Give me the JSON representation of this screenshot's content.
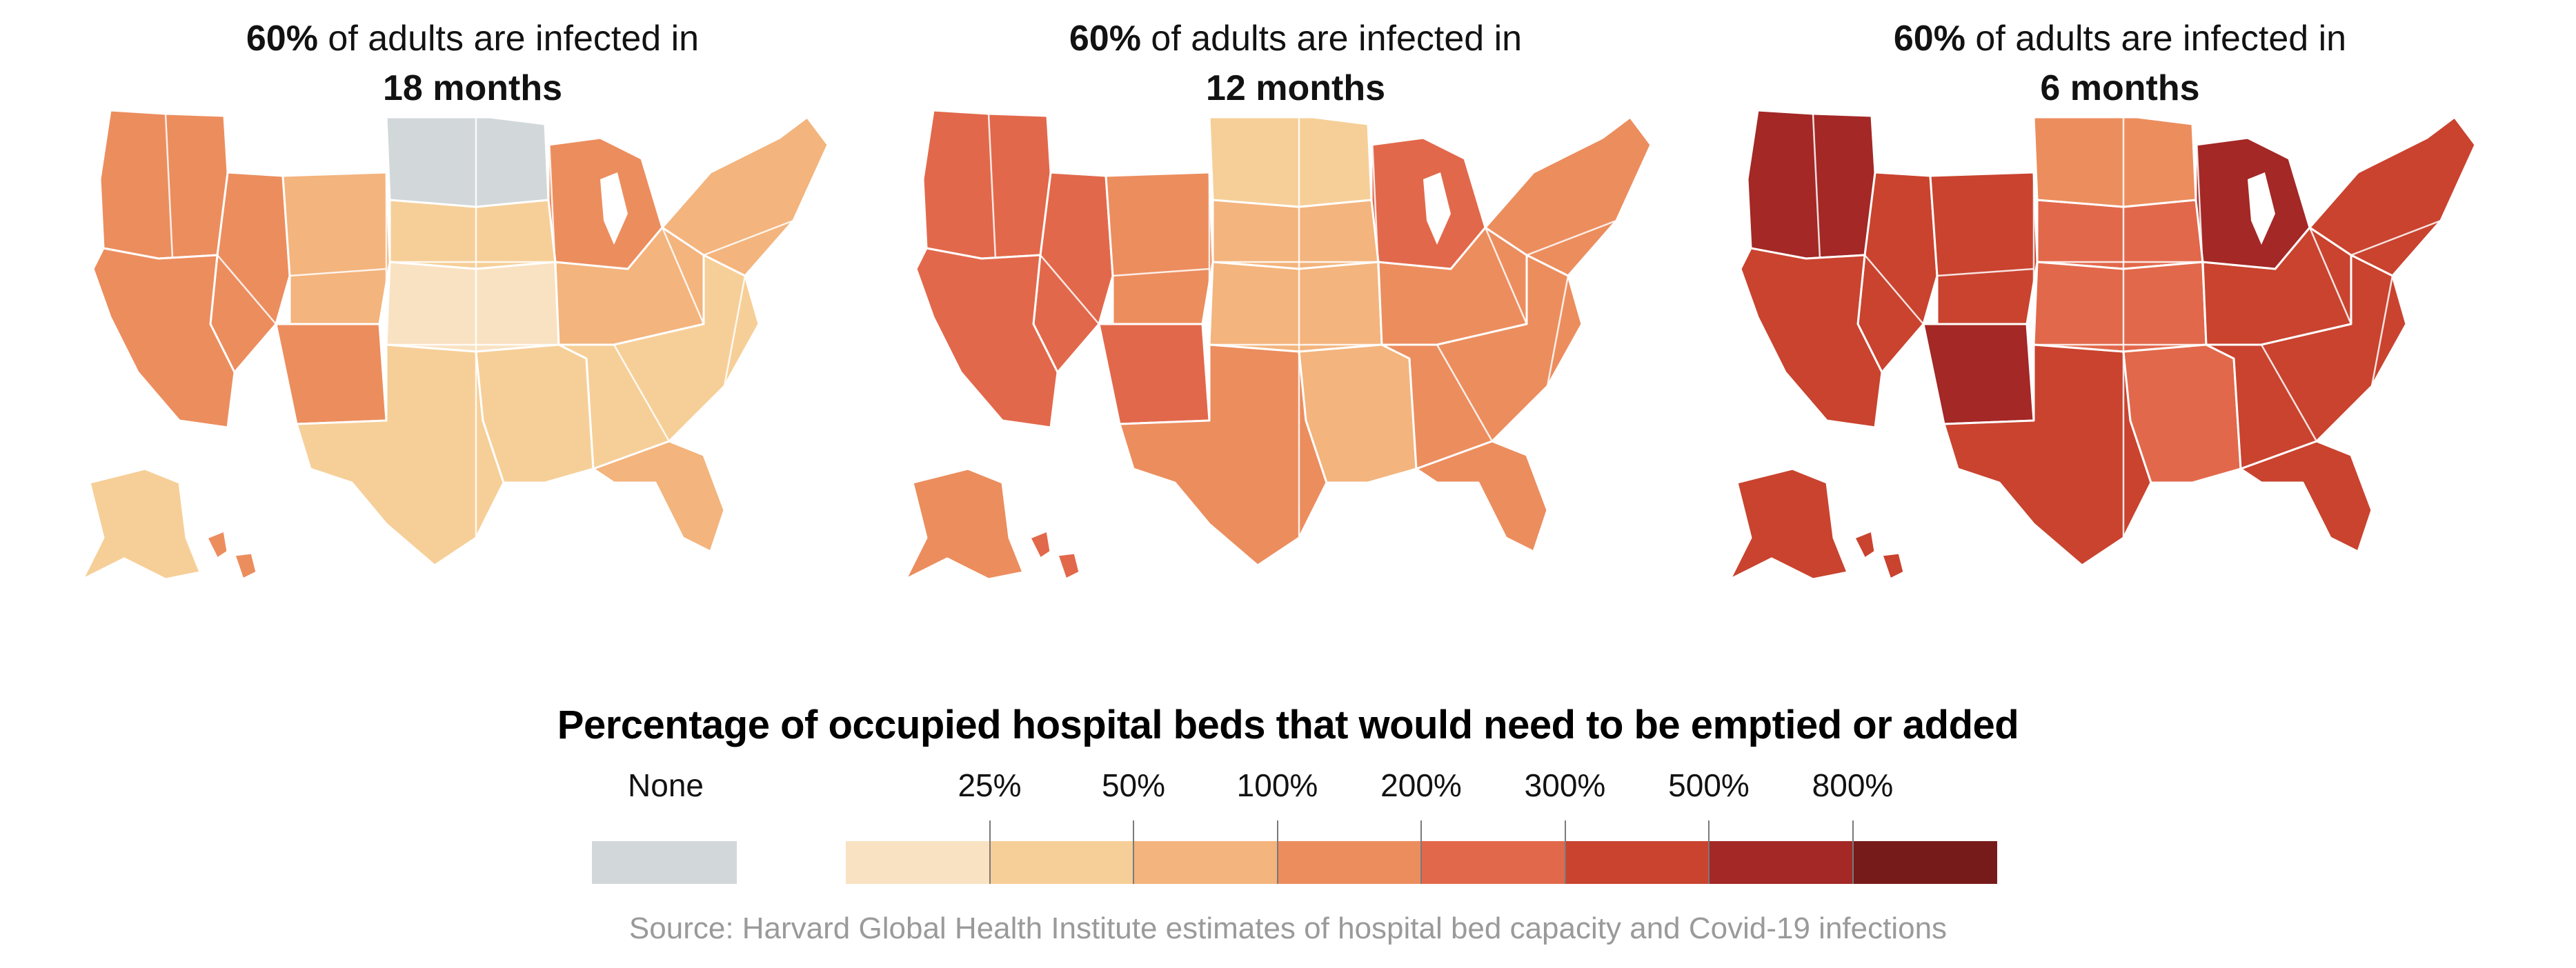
{
  "panels": [
    {
      "title_bold": "60%",
      "title_rest": "of adults are infected in",
      "title_line2": "18 months",
      "regions": [
        {
          "name": "west",
          "level": 4
        },
        {
          "name": "northwest",
          "level": 4
        },
        {
          "name": "california",
          "level": 4
        },
        {
          "name": "mountain",
          "level": 3
        },
        {
          "name": "colorado",
          "level": 4
        },
        {
          "name": "northern_plains",
          "level": 2
        },
        {
          "name": "dakotas",
          "level": 0
        },
        {
          "name": "central_plains",
          "level": 1
        },
        {
          "name": "texas",
          "level": 2
        },
        {
          "name": "south",
          "level": 2
        },
        {
          "name": "midwest",
          "level": 3
        },
        {
          "name": "great_lakes",
          "level": 4
        },
        {
          "name": "northeast",
          "level": 3
        },
        {
          "name": "southeast",
          "level": 2
        },
        {
          "name": "florida",
          "level": 3
        },
        {
          "name": "alaska",
          "level": 2
        },
        {
          "name": "hawaii",
          "level": 4
        }
      ]
    },
    {
      "title_bold": "60%",
      "title_rest": "of adults are infected in",
      "title_line2": "12 months",
      "regions": [
        {
          "name": "west",
          "level": 5
        },
        {
          "name": "northwest",
          "level": 5
        },
        {
          "name": "california",
          "level": 5
        },
        {
          "name": "mountain",
          "level": 4
        },
        {
          "name": "colorado",
          "level": 5
        },
        {
          "name": "northern_plains",
          "level": 3
        },
        {
          "name": "dakotas",
          "level": 2
        },
        {
          "name": "central_plains",
          "level": 3
        },
        {
          "name": "texas",
          "level": 4
        },
        {
          "name": "south",
          "level": 3
        },
        {
          "name": "midwest",
          "level": 4
        },
        {
          "name": "great_lakes",
          "level": 5
        },
        {
          "name": "northeast",
          "level": 4
        },
        {
          "name": "southeast",
          "level": 4
        },
        {
          "name": "florida",
          "level": 4
        },
        {
          "name": "alaska",
          "level": 4
        },
        {
          "name": "hawaii",
          "level": 5
        }
      ]
    },
    {
      "title_bold": "60%",
      "title_rest": "of adults are infected in",
      "title_line2": "6 months",
      "regions": [
        {
          "name": "west",
          "level": 6
        },
        {
          "name": "northwest",
          "level": 7
        },
        {
          "name": "california",
          "level": 6
        },
        {
          "name": "mountain",
          "level": 6
        },
        {
          "name": "colorado",
          "level": 7
        },
        {
          "name": "northern_plains",
          "level": 5
        },
        {
          "name": "dakotas",
          "level": 4
        },
        {
          "name": "central_plains",
          "level": 5
        },
        {
          "name": "texas",
          "level": 6
        },
        {
          "name": "south",
          "level": 5
        },
        {
          "name": "midwest",
          "level": 6
        },
        {
          "name": "great_lakes",
          "level": 7
        },
        {
          "name": "northeast",
          "level": 6
        },
        {
          "name": "southeast",
          "level": 6
        },
        {
          "name": "florida",
          "level": 6
        },
        {
          "name": "alaska",
          "level": 6
        },
        {
          "name": "hawaii",
          "level": 6
        }
      ]
    }
  ],
  "legend": {
    "title": "Percentage of occupied hospital beds that would need to be emptied or added",
    "none_label": "None",
    "none_color": "#d2d7da",
    "ticks": [
      "25%",
      "50%",
      "100%",
      "200%",
      "300%",
      "500%",
      "800%"
    ],
    "colors": [
      "#f9e2c2",
      "#f6cf98",
      "#f3b47d",
      "#ec8d5e",
      "#e2684b",
      "#c9432f",
      "#a32826",
      "#761b19"
    ]
  },
  "source": "Source: Harvard Global Health Institute estimates of hospital bed capacity and Covid-19 infections"
}
